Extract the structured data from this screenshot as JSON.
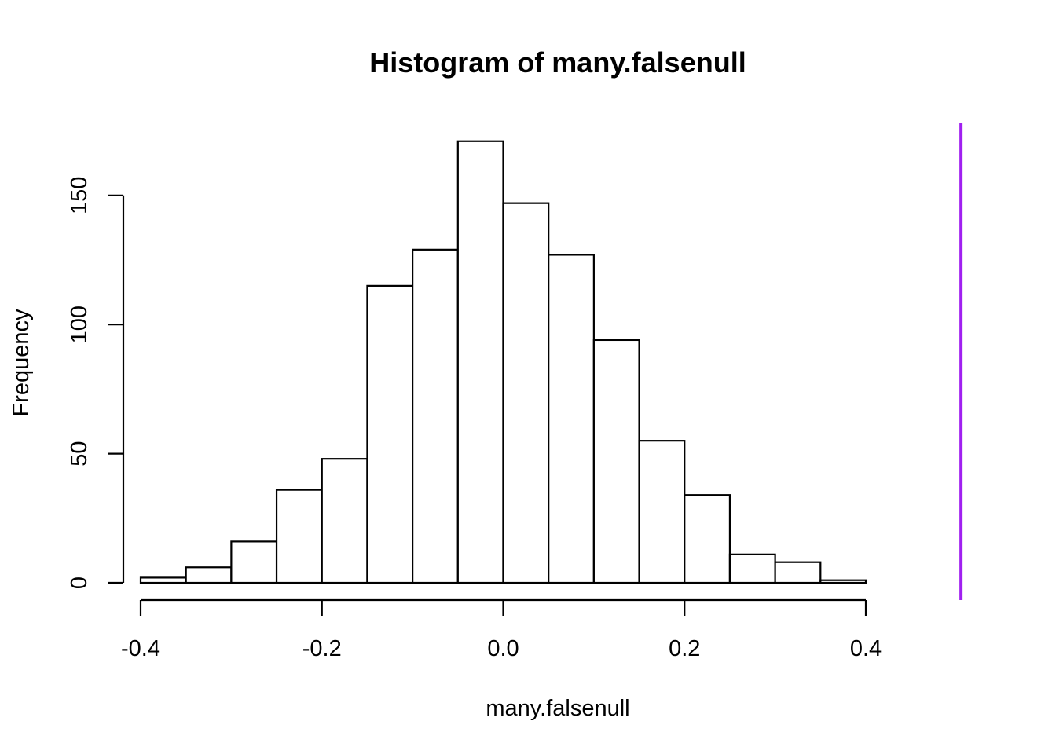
{
  "chart_data": {
    "type": "bar",
    "title": "Histogram of many.falsenull",
    "xlabel": "many.falsenull",
    "ylabel": "Frequency",
    "bin_edges": [
      -0.4,
      -0.35,
      -0.3,
      -0.25,
      -0.2,
      -0.15,
      -0.1,
      -0.05,
      0.0,
      0.05,
      0.1,
      0.15,
      0.2,
      0.25,
      0.3,
      0.35,
      0.4
    ],
    "values": [
      2,
      6,
      16,
      36,
      48,
      115,
      129,
      171,
      147,
      127,
      94,
      55,
      34,
      11,
      8,
      1
    ],
    "xlim": [
      -0.4,
      0.4
    ],
    "ylim": [
      0,
      175
    ],
    "x_ticks": [
      "-0.4",
      "-0.2",
      "0.0",
      "0.2",
      "0.4"
    ],
    "x_tick_values": [
      -0.4,
      -0.2,
      0.0,
      0.2,
      0.4
    ],
    "y_ticks": [
      "0",
      "50",
      "100",
      "150"
    ],
    "y_tick_values": [
      0,
      50,
      100,
      150
    ],
    "vertical_line": {
      "x": 0.505,
      "color": "#a020f0"
    },
    "grid": false,
    "colors": {
      "bar_fill": "#ffffff",
      "bar_stroke": "#000000"
    }
  }
}
